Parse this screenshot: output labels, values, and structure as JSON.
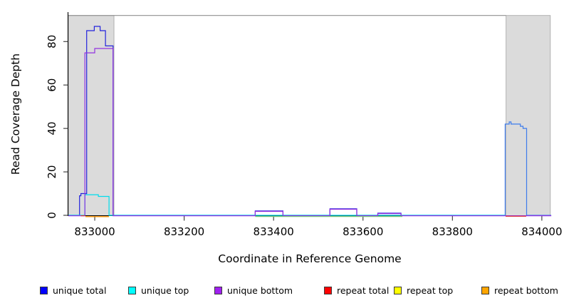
{
  "chart_data": {
    "type": "line",
    "subtype": "step-coverage",
    "title": "",
    "xlabel": "Coordinate in Reference Genome",
    "ylabel": "Read Coverage Depth",
    "x_ticks": [
      833000,
      833200,
      833400,
      833600,
      833800,
      834000
    ],
    "x_tick_labels": [
      "833000",
      "833200",
      "833400",
      "833600",
      "833800",
      "834000"
    ],
    "y_ticks": [
      0,
      20,
      40,
      60,
      80
    ],
    "y_tick_labels": [
      "0",
      "20",
      "40",
      "60",
      "80"
    ],
    "xlim": [
      832941,
      834021
    ],
    "ylim": [
      0,
      93
    ],
    "grid": false,
    "legend_position": "bottom-horizontal",
    "shaded_regions": [
      {
        "name": "left-gray-band",
        "x0": 832941,
        "x1": 833043,
        "top_depth": 92,
        "fill": "#DBDBDB",
        "border": "#A3A3A3"
      },
      {
        "name": "right-gray-band",
        "x0": 833920,
        "x1": 834019,
        "top_depth": 92,
        "fill": "#DBDBDB",
        "border": "#A3A3A3"
      }
    ],
    "top_rule": {
      "depth": 92,
      "x0": 832941,
      "x1": 833920,
      "color": "#909090"
    },
    "series": [
      {
        "name": "unique total",
        "color": "#2323DC",
        "segments": [
          {
            "note": "left peak and middle bumps",
            "color": "#2323DC",
            "points": [
              [
                832941,
                0
              ],
              [
                832966,
                9
              ],
              [
                832969,
                10
              ],
              [
                832982,
                85
              ],
              [
                832999,
                87
              ],
              [
                833012,
                85
              ],
              [
                833024,
                78
              ],
              [
                833041,
                0
              ],
              [
                833359,
                2
              ],
              [
                833421,
                0
              ],
              [
                833526,
                3
              ],
              [
                833586,
                0
              ],
              [
                833633,
                1
              ],
              [
                833685,
                0
              ],
              [
                833918,
                0
              ]
            ]
          },
          {
            "note": "right peak; appears lighter blue because unique top overlaps unique total here",
            "color": "#3E7CEC",
            "points": [
              [
                833918,
                0
              ],
              [
                833918,
                42
              ],
              [
                833927,
                43
              ],
              [
                833931,
                42
              ],
              [
                833952,
                41
              ],
              [
                833958,
                40
              ],
              [
                833966,
                0
              ],
              [
                834021,
                0
              ]
            ]
          }
        ]
      },
      {
        "name": "unique top",
        "color": "#00DCEC",
        "segments": [
          {
            "note": "small plateau inside left gray band",
            "color": "#00DCEC",
            "points": [
              [
                832941,
                0
              ],
              [
                832978,
                9.5
              ],
              [
                833008,
                8.7
              ],
              [
                833032,
                0
              ],
              [
                833918,
                0
              ]
            ]
          }
        ]
      },
      {
        "name": "unique bottom",
        "color": "#9232E0",
        "segments": [
          {
            "note": "tall plateau in left band; middle bumps overlap unique total",
            "color": "#9232E0",
            "dy": 0.6,
            "points": [
              [
                832941,
                0
              ],
              [
                832978,
                75
              ],
              [
                833000,
                77
              ],
              [
                833041,
                0
              ],
              [
                833359,
                2
              ],
              [
                833421,
                0
              ],
              [
                833526,
                3
              ],
              [
                833586,
                0
              ],
              [
                833633,
                1
              ],
              [
                833685,
                0
              ],
              [
                834021,
                0
              ]
            ]
          }
        ]
      },
      {
        "name": "repeat total",
        "color": "#E02828",
        "segments": [
          {
            "note": "tiny red at base of left peak",
            "color": "#E02828",
            "dy": 0.6,
            "points": [
              [
                832969,
                0
              ],
              [
                832978,
                0
              ]
            ]
          },
          {
            "note": "red along baseline under right peak",
            "color": "#E02828",
            "dy": 1.3,
            "points": [
              [
                833919,
                0
              ],
              [
                833965,
                0
              ]
            ]
          }
        ]
      },
      {
        "name": "repeat top",
        "color": "#FFFF00",
        "segments": [
          {
            "note": "visible only as green blend with unique top along baseline under middle bumps",
            "color": "#79C879",
            "dy": 1.6,
            "points": [
              [
                833359,
                0
              ],
              [
                833688,
                0
              ]
            ]
          }
        ]
      },
      {
        "name": "repeat bottom",
        "color": "#FF9500",
        "segments": [
          {
            "note": "orange just below baseline inside left gray band",
            "color": "#FF9500",
            "dy": 1.8,
            "width": 1.4,
            "points": [
              [
                832979,
                0
              ],
              [
                833032,
                0
              ]
            ]
          }
        ]
      }
    ],
    "legend": [
      {
        "label": "unique total",
        "color": "#0000FF"
      },
      {
        "label": "unique top",
        "color": "#00FFFF"
      },
      {
        "label": "unique bottom",
        "color": "#A020F0"
      },
      {
        "label": "repeat total",
        "color": "#FF0000"
      },
      {
        "label": "repeat top",
        "color": "#FFFF00"
      },
      {
        "label": "repeat bottom",
        "color": "#FFA500"
      }
    ]
  },
  "axis_colors": {
    "axis_line": "#000000",
    "tick": "#333333",
    "label": "#000000"
  }
}
